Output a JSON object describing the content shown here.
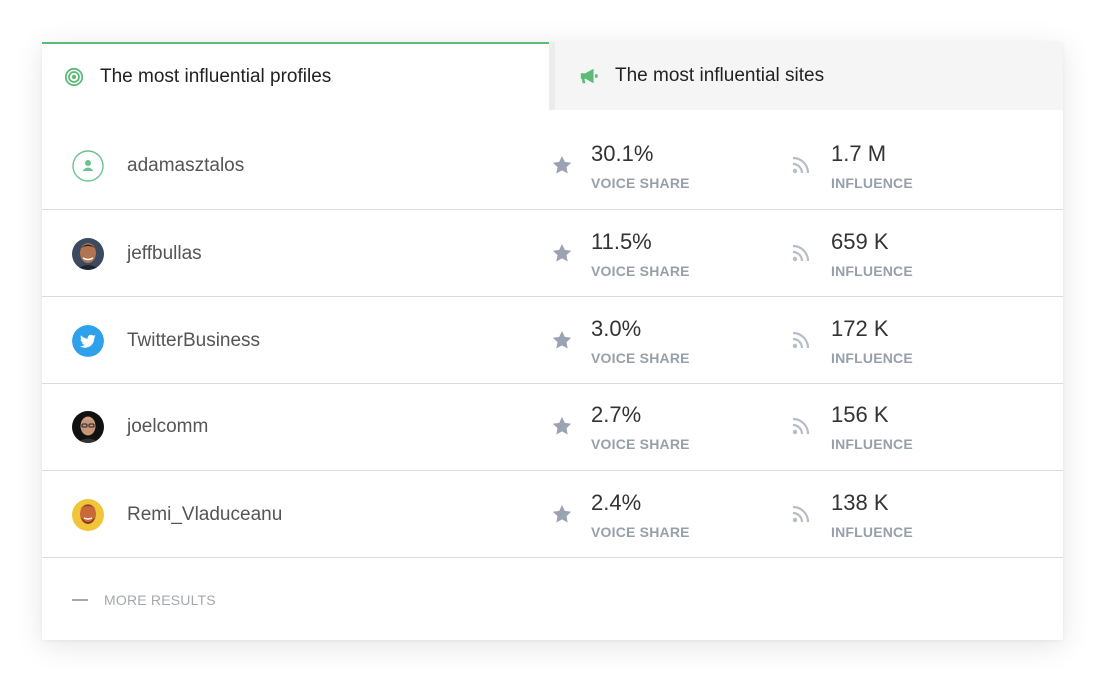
{
  "tabs": [
    {
      "label": "The most influential profiles",
      "icon": "target-icon",
      "active": true
    },
    {
      "label": "The most influential sites",
      "icon": "megaphone-icon",
      "active": false
    }
  ],
  "stat_labels": {
    "voice_share": "VOICE SHARE",
    "influence": "INFLUENCE"
  },
  "profiles": [
    {
      "name": "adamasztalos",
      "voice_share": "30.1%",
      "influence": "1.7 M",
      "avatar": "default-user-icon"
    },
    {
      "name": "jeffbullas",
      "voice_share": "11.5%",
      "influence": "659 K",
      "avatar": "profile-photo"
    },
    {
      "name": "TwitterBusiness",
      "voice_share": "3.0%",
      "influence": "172 K",
      "avatar": "twitter-bird-icon"
    },
    {
      "name": "joelcomm",
      "voice_share": "2.7%",
      "influence": "156 K",
      "avatar": "profile-photo"
    },
    {
      "name": "Remi_Vladuceanu",
      "voice_share": "2.4%",
      "influence": "138 K",
      "avatar": "profile-photo"
    }
  ],
  "more_results": "MORE RESULTS",
  "colors": {
    "accent_green": "#5dbb78",
    "twitter_blue": "#2fa0ec",
    "muted": "#97a0aa"
  }
}
